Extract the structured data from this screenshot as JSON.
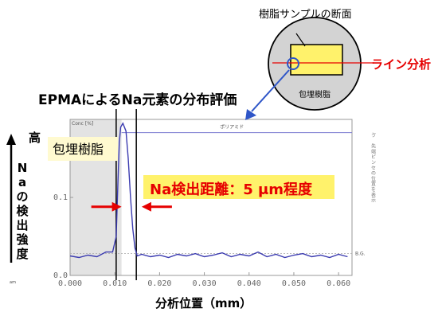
{
  "chart_data": {
    "type": "line",
    "title": "EPMAによるNa元素の分布評価",
    "xlabel": "分析位置（mm）",
    "ylabel": "Naの検出強度",
    "ylabel_top": "高",
    "unit_label": "Conc [%]",
    "xlim": [
      0.0,
      0.063
    ],
    "ylim": [
      0.0,
      0.2
    ],
    "x_ticks": [
      "0.000",
      "0.010",
      "0.020",
      "0.030",
      "0.040",
      "0.050",
      "0.060"
    ],
    "y_ticks": [
      "0.1",
      "0.0"
    ],
    "shaded_region_label": "包埋樹脂",
    "shaded_region_x": [
      0.0,
      0.0115
    ],
    "polyamide_label": "ポリアミド",
    "polyamide_level": 0.183,
    "bg_label": "B.G.",
    "bg_level": 0.028,
    "right_vertical_text": "ゔ 先端ピンセの位置を表示",
    "series": [
      {
        "x": [
          0.0,
          0.002,
          0.004,
          0.006,
          0.008,
          0.0095,
          0.0103,
          0.0107,
          0.011,
          0.0113,
          0.0118,
          0.0125,
          0.013,
          0.0135,
          0.014,
          0.0145,
          0.015,
          0.016,
          0.018,
          0.02,
          0.022,
          0.024,
          0.026,
          0.028,
          0.03,
          0.032,
          0.034,
          0.036,
          0.038,
          0.04,
          0.042,
          0.044,
          0.046,
          0.048,
          0.05,
          0.052,
          0.054,
          0.056,
          0.058,
          0.06,
          0.062
        ],
        "values": [
          0.025,
          0.023,
          0.026,
          0.024,
          0.03,
          0.03,
          0.05,
          0.12,
          0.17,
          0.19,
          0.195,
          0.185,
          0.15,
          0.1,
          0.06,
          0.035,
          0.025,
          0.027,
          0.024,
          0.026,
          0.023,
          0.027,
          0.025,
          0.028,
          0.024,
          0.026,
          0.029,
          0.024,
          0.027,
          0.025,
          0.03,
          0.024,
          0.027,
          0.023,
          0.026,
          0.028,
          0.024,
          0.026,
          0.023,
          0.027,
          0.024
        ]
      }
    ],
    "annotations": {
      "distance_label": "Na検出距離：5 μm程度",
      "distance_x": [
        0.0115,
        0.016
      ],
      "distance_y": 0.088,
      "line_analysis": "ライン分析",
      "sample_caption": "樹脂サンプルの断面",
      "sample_inner_label": "包埋樹脂"
    }
  },
  "colors": {
    "series": "#3b3bb0",
    "polyamide_line": "#7a7ad0",
    "accent_red": "#e60000",
    "callout_bg": "#fff26b",
    "region_bg": "#e3e3e3",
    "label_bg": "#fffad0",
    "inset_bg": "#d3d3d3",
    "arrow_blue": "#2f56c8"
  }
}
